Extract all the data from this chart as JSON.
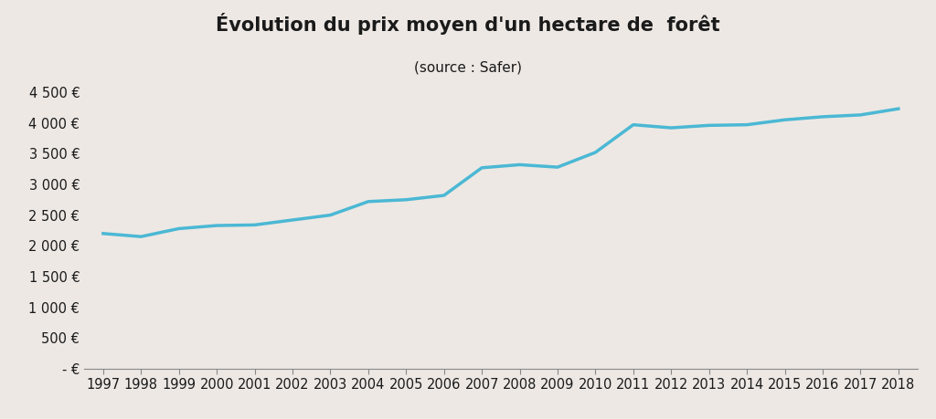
{
  "title": "Évolution du prix moyen d'un hectare de  forêt",
  "subtitle": "(source : Safer)",
  "background_color": "#ede8e4",
  "line_color": "#4bb8d4",
  "line_width": 2.5,
  "years": [
    1997,
    1998,
    1999,
    2000,
    2001,
    2002,
    2003,
    2004,
    2005,
    2006,
    2007,
    2008,
    2009,
    2010,
    2011,
    2012,
    2013,
    2014,
    2015,
    2016,
    2017,
    2018
  ],
  "values": [
    2200,
    2150,
    2280,
    2330,
    2340,
    2420,
    2500,
    2720,
    2750,
    2820,
    3270,
    3320,
    3280,
    3520,
    3970,
    3920,
    3960,
    3970,
    4050,
    4100,
    4130,
    4230
  ],
  "ylim": [
    0,
    4500
  ],
  "yticks": [
    0,
    500,
    1000,
    1500,
    2000,
    2500,
    3000,
    3500,
    4000,
    4500
  ],
  "ytick_labels": [
    "- €",
    "500 €",
    "1 000 €",
    "1 500 €",
    "2 000 €",
    "2 500 €",
    "3 000 €",
    "3 500 €",
    "4 000 €",
    "4 500 €"
  ],
  "title_fontsize": 15,
  "subtitle_fontsize": 11,
  "tick_fontsize": 10.5,
  "axis_color": "#888888",
  "text_color": "#1a1a1a"
}
